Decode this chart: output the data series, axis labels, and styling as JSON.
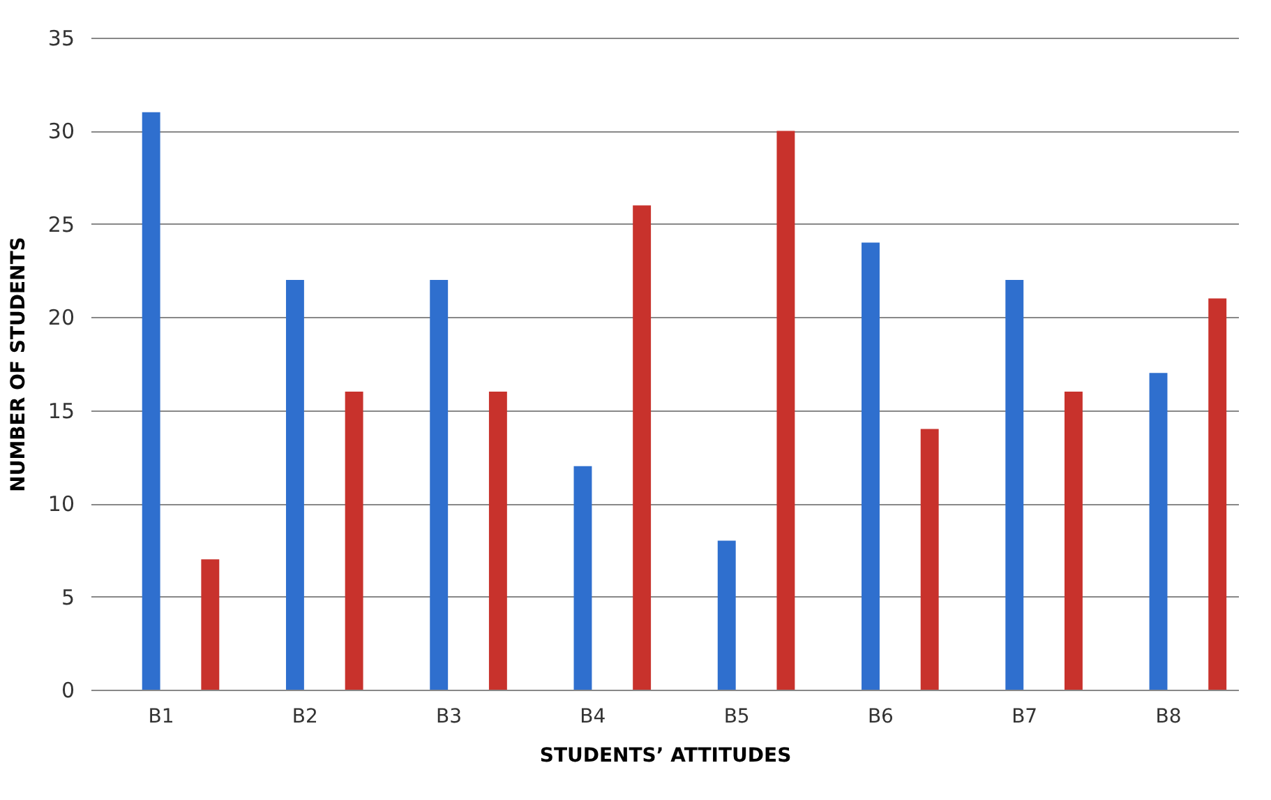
{
  "chart_data": {
    "type": "bar",
    "xlabel": "STUDENTS’ ATTITUDES",
    "ylabel": "NUMBER OF STUDENTS",
    "categories": [
      "B1",
      "B2",
      "B3",
      "B4",
      "B5",
      "B6",
      "B7",
      "B8"
    ],
    "series": [
      {
        "color": "#2f6fce",
        "values": [
          31,
          22,
          22,
          12,
          8,
          24,
          22,
          17
        ]
      },
      {
        "color": "#c8322c",
        "values": [
          7,
          16,
          16,
          26,
          30,
          14,
          16,
          21
        ]
      }
    ],
    "ylim": [
      0,
      35
    ],
    "yticks": [
      0,
      5,
      10,
      15,
      20,
      25,
      30,
      35
    ],
    "grid": "y",
    "legend": false
  }
}
